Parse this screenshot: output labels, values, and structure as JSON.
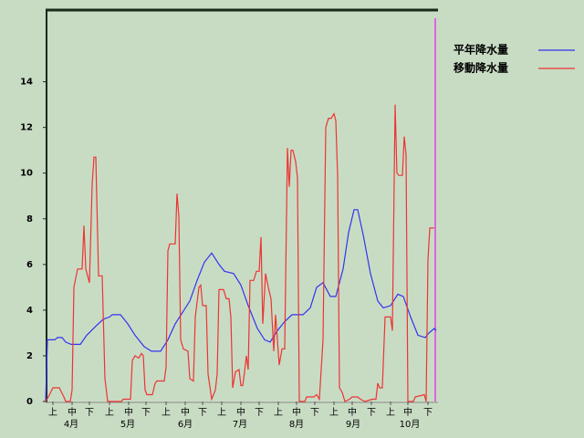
{
  "chart_data": {
    "type": "line",
    "xlim": [
      0,
      215
    ],
    "ylim": [
      0,
      17.1
    ],
    "yticks": [
      0,
      2,
      4,
      6,
      8,
      10,
      12,
      14
    ],
    "xticks": [
      {
        "value": 4,
        "label": "上"
      },
      {
        "value": 14.5,
        "label": "中"
      },
      {
        "value": 24,
        "label": "下"
      },
      {
        "value": 35,
        "label": "上"
      },
      {
        "value": 45.5,
        "label": "中"
      },
      {
        "value": 55,
        "label": "下"
      },
      {
        "value": 66,
        "label": "上"
      },
      {
        "value": 76.5,
        "label": "中"
      },
      {
        "value": 86,
        "label": "下"
      },
      {
        "value": 96.5,
        "label": "上"
      },
      {
        "value": 107,
        "label": "中"
      },
      {
        "value": 117,
        "label": "下"
      },
      {
        "value": 127.5,
        "label": "上"
      },
      {
        "value": 137.5,
        "label": "中"
      },
      {
        "value": 147.5,
        "label": "下"
      },
      {
        "value": 158,
        "label": "上"
      },
      {
        "value": 168,
        "label": "中"
      },
      {
        "value": 178.5,
        "label": "下"
      },
      {
        "value": 189,
        "label": "上"
      },
      {
        "value": 198.5,
        "label": "中"
      },
      {
        "value": 209.5,
        "label": "下"
      }
    ],
    "month_ticks": [
      {
        "value": 14,
        "label": "4月"
      },
      {
        "value": 45,
        "label": "5月"
      },
      {
        "value": 76.5,
        "label": "6月"
      },
      {
        "value": 106.5,
        "label": "7月"
      },
      {
        "value": 137.5,
        "label": "8月"
      },
      {
        "value": 168.5,
        "label": "9月"
      },
      {
        "value": 199.5,
        "label": "10月"
      }
    ],
    "legend": "top-right",
    "series": [
      {
        "name": "平年降水量",
        "color": "#3333ee",
        "x": [
          0,
          1,
          5,
          6.5,
          9,
          11,
          14,
          19,
          22.5,
          27.5,
          31.5,
          35,
          36.5,
          41,
          45,
          49,
          54,
          58,
          63,
          67,
          71,
          75,
          79,
          83,
          87,
          91,
          95,
          98,
          103,
          107,
          111,
          116,
          120,
          123,
          127,
          131,
          135,
          141,
          145,
          148.5,
          152,
          156,
          159,
          163,
          166,
          169,
          171,
          174,
          178,
          182,
          185,
          189,
          193,
          196,
          200,
          204,
          208,
          210,
          213,
          214
        ],
        "values": [
          0,
          2.7,
          2.7,
          2.8,
          2.8,
          2.6,
          2.5,
          2.5,
          2.9,
          3.3,
          3.6,
          3.7,
          3.8,
          3.8,
          3.4,
          2.9,
          2.4,
          2.2,
          2.2,
          2.7,
          3.4,
          3.9,
          4.4,
          5.3,
          6.1,
          6.5,
          6,
          5.7,
          5.6,
          5.1,
          4.2,
          3.2,
          2.7,
          2.6,
          3.1,
          3.5,
          3.8,
          3.8,
          4.1,
          5,
          5.2,
          4.6,
          4.6,
          5.8,
          7.4,
          8.4,
          8.4,
          7.3,
          5.6,
          4.4,
          4.1,
          4.2,
          4.7,
          4.6,
          3.7,
          2.9,
          2.8,
          3,
          3.2,
          3.1
        ]
      },
      {
        "name": "移動降水量",
        "color": "#ee3333",
        "x": [
          0,
          1.5,
          4,
          7.5,
          10,
          11,
          13.5,
          14.5,
          15.5,
          17.5,
          20,
          21,
          22,
          24,
          25.5,
          26.5,
          27.5,
          29,
          31,
          32.5,
          34,
          41.5,
          42.5,
          46.5,
          47.5,
          49,
          51,
          52.5,
          53.5,
          54.5,
          55.5,
          58.5,
          60,
          61,
          65,
          66,
          67,
          68,
          71,
          72,
          73,
          74,
          75.5,
          78,
          79,
          81,
          82,
          84,
          85,
          86,
          88,
          89,
          91,
          93,
          94,
          95,
          97.5,
          99,
          100.5,
          101.5,
          102.5,
          104,
          106,
          107,
          108,
          109,
          110,
          111,
          112,
          114,
          115.5,
          117,
          118,
          119,
          120.5,
          122,
          123.5,
          125,
          126,
          128,
          129.5,
          131,
          132.5,
          133.5,
          134.5,
          135.5,
          137,
          138,
          139,
          142,
          143,
          147,
          148.5,
          150,
          152,
          153.5,
          155,
          156.5,
          158,
          159,
          160,
          161,
          162.5,
          164,
          166.5,
          168,
          171,
          172.5,
          175,
          179,
          181,
          182,
          183,
          184.5,
          186,
          189,
          190,
          191.5,
          192.5,
          193.5,
          195.5,
          196.5,
          197.5,
          198.5,
          201.5,
          202.5,
          207.5,
          208.5,
          209.5,
          210.5,
          213
        ],
        "values": [
          0,
          0.2,
          0.6,
          0.6,
          0.2,
          0,
          0,
          0.5,
          5,
          5.8,
          5.8,
          7.7,
          5.8,
          5.2,
          9.5,
          10.7,
          10.7,
          5.5,
          5.5,
          1,
          0,
          0,
          0.1,
          0.1,
          1.8,
          2,
          1.9,
          2.1,
          2,
          0.5,
          0.3,
          0.3,
          0.8,
          0.9,
          0.9,
          1.5,
          6.6,
          6.9,
          6.9,
          9.1,
          8.1,
          2.7,
          2.3,
          2.2,
          1,
          0.9,
          3.7,
          5,
          5.1,
          4.2,
          4.2,
          1.2,
          0.1,
          0.5,
          1.2,
          4.9,
          4.9,
          4.5,
          4.5,
          3.7,
          0.6,
          1.3,
          1.4,
          0.7,
          0.7,
          1.3,
          2,
          1.4,
          5.3,
          5.3,
          5.7,
          5.7,
          7.2,
          3.4,
          5.6,
          5,
          4.5,
          2.2,
          3.8,
          1.6,
          2.3,
          2.3,
          11.1,
          9.4,
          11,
          11,
          10.5,
          9.8,
          0,
          0,
          0.2,
          0.2,
          0.3,
          0.1,
          2.7,
          12,
          12.4,
          12.4,
          12.6,
          12.3,
          9.9,
          0.6,
          0.4,
          0,
          0.1,
          0.2,
          0.2,
          0.1,
          0,
          0.1,
          0.1,
          0.8,
          0.6,
          0.6,
          3.7,
          3.7,
          3.1,
          13,
          10,
          9.9,
          9.9,
          11.6,
          10.8,
          0,
          0,
          0.2,
          0.3,
          0,
          6.2,
          7.6,
          7.6
        ]
      }
    ]
  }
}
